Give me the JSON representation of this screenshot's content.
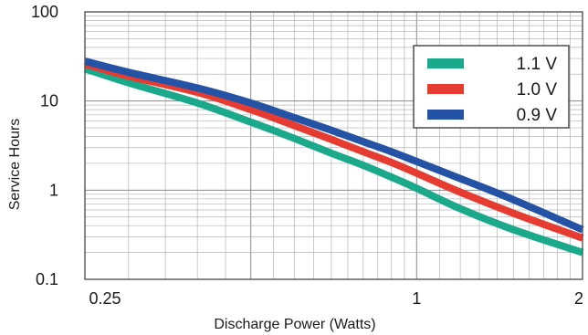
{
  "chart_data": {
    "type": "line",
    "title": "",
    "xlabel": "Discharge Power (Watts)",
    "ylabel": "Service Hours",
    "x_scale": "log",
    "y_scale": "log",
    "xlim": [
      0.25,
      2
    ],
    "ylim": [
      0.1,
      100
    ],
    "x_ticks": [
      {
        "value": 0.25,
        "label": "0.25"
      },
      {
        "value": 1,
        "label": "1"
      },
      {
        "value": 2,
        "label": "2"
      }
    ],
    "y_ticks": [
      {
        "value": 100,
        "label": "100"
      },
      {
        "value": 10,
        "label": "10"
      },
      {
        "value": 1,
        "label": "1"
      },
      {
        "value": 0.1,
        "label": "0.1"
      }
    ],
    "grid": true,
    "legend_position": "top-right",
    "series": [
      {
        "name": "1.1 V",
        "color": "#1aa98a",
        "x": [
          0.25,
          0.3,
          0.4,
          0.5,
          0.6,
          0.7,
          0.8,
          0.9,
          1.0,
          1.2,
          1.5,
          2.0
        ],
        "y": [
          23,
          16,
          9.5,
          5.8,
          3.8,
          2.6,
          1.9,
          1.4,
          1.05,
          0.62,
          0.36,
          0.2
        ]
      },
      {
        "name": "1.0 V",
        "color": "#e53b30",
        "x": [
          0.25,
          0.3,
          0.4,
          0.5,
          0.6,
          0.7,
          0.8,
          0.9,
          1.0,
          1.2,
          1.5,
          2.0
        ],
        "y": [
          26,
          19,
          12.5,
          8.0,
          5.3,
          3.7,
          2.7,
          2.05,
          1.55,
          0.95,
          0.55,
          0.29
        ]
      },
      {
        "name": "0.9 V",
        "color": "#2452a4",
        "x": [
          0.25,
          0.3,
          0.4,
          0.5,
          0.6,
          0.7,
          0.8,
          0.9,
          1.0,
          1.2,
          1.5,
          2.0
        ],
        "y": [
          28,
          21,
          14,
          9.5,
          6.5,
          4.7,
          3.5,
          2.7,
          2.1,
          1.35,
          0.78,
          0.36
        ]
      }
    ]
  }
}
